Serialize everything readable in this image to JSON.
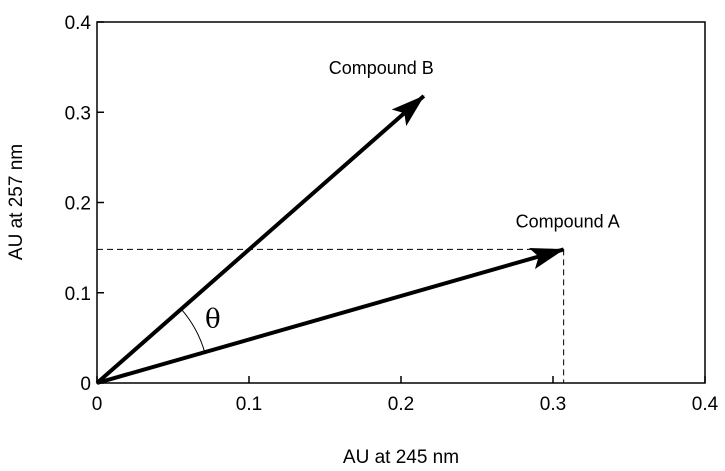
{
  "chart_data": {
    "type": "line",
    "title": "",
    "xlabel": "AU at 245 nm",
    "ylabel": "AU at 257 nm",
    "xlim": [
      0,
      0.4
    ],
    "ylim": [
      0,
      0.4
    ],
    "x_ticks": [
      "0",
      "0.1",
      "0.2",
      "0.3",
      "0.4"
    ],
    "y_ticks": [
      "0",
      "0.1",
      "0.2",
      "0.3",
      "0.4"
    ],
    "grid": false,
    "series": [
      {
        "name": "Compound A",
        "x": [
          0,
          0.307
        ],
        "y": [
          0,
          0.148
        ]
      },
      {
        "name": "Compound B",
        "x": [
          0,
          0.215
        ],
        "y": [
          0,
          0.318
        ]
      }
    ],
    "annotations": {
      "angle_symbol": "θ",
      "projection_point": {
        "x": 0.307,
        "y": 0.148
      }
    }
  }
}
